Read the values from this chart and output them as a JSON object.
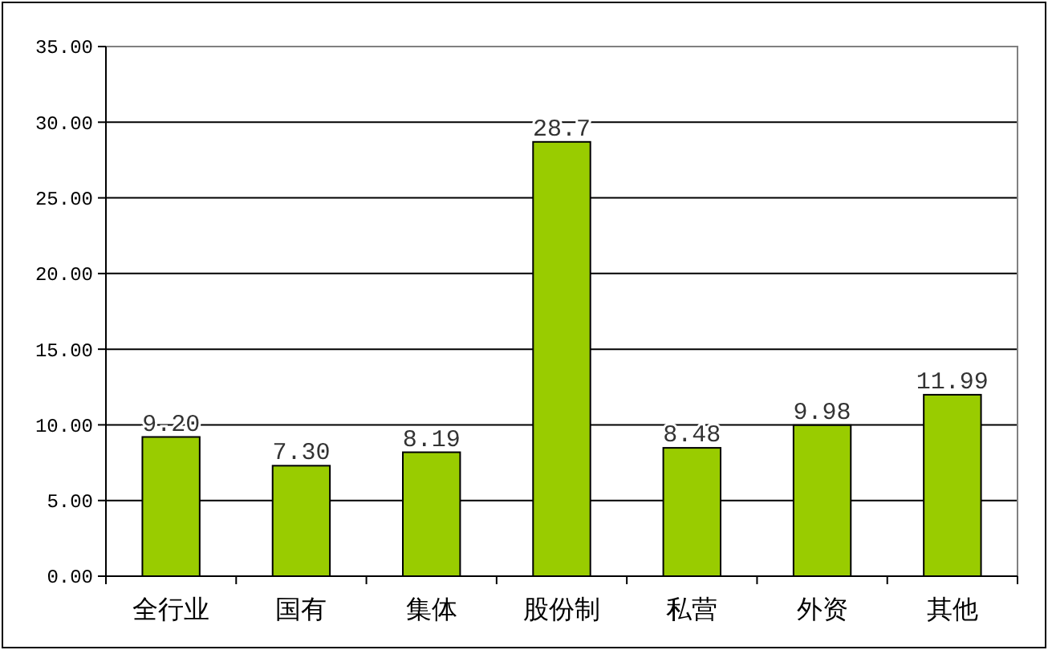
{
  "chart_data": {
    "type": "bar",
    "categories": [
      "全行业",
      "国有",
      "集体",
      "股份制",
      "私营",
      "外资",
      "其他"
    ],
    "values": [
      9.2,
      7.3,
      8.19,
      28.7,
      8.48,
      9.98,
      11.99
    ],
    "value_labels": [
      "9.20",
      "7.30",
      "8.19",
      "28.7",
      "8.48",
      "9.98",
      "11.99"
    ],
    "color": "#99cc00",
    "ylim": [
      0,
      35
    ],
    "yticks": [
      {
        "value": 0,
        "label": "0.00"
      },
      {
        "value": 5,
        "label": "5.00"
      },
      {
        "value": 10,
        "label": "10.00"
      },
      {
        "value": 15,
        "label": "15.00"
      },
      {
        "value": 20,
        "label": "20.00"
      },
      {
        "value": 25,
        "label": "25.00"
      },
      {
        "value": 30,
        "label": "30.00"
      },
      {
        "value": 35,
        "label": "35.00"
      }
    ],
    "grid": "y"
  }
}
